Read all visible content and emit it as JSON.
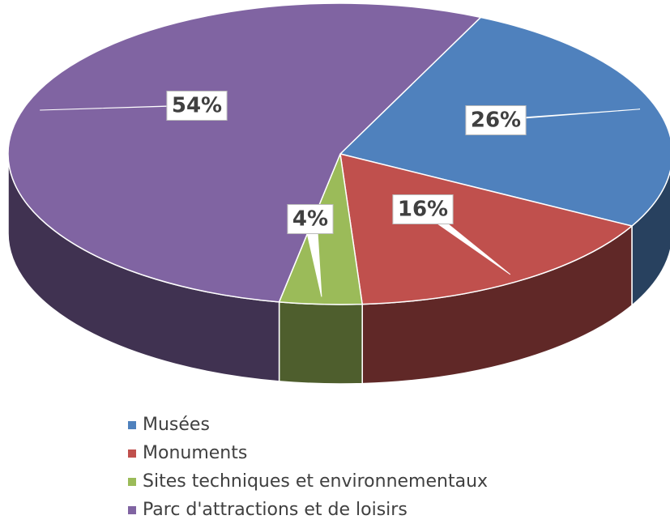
{
  "chart_data": {
    "type": "pie",
    "categories": [
      "Musées",
      "Monuments",
      "Sites techniques et environnementaux",
      "Parc d'attractions et de loisirs"
    ],
    "values": [
      26,
      16,
      4,
      54
    ],
    "value_labels": [
      "26%",
      "16%",
      "4%",
      "54%"
    ],
    "colors": [
      "#4f81bd",
      "#c0504d",
      "#9bbb59",
      "#8064a2"
    ]
  }
}
